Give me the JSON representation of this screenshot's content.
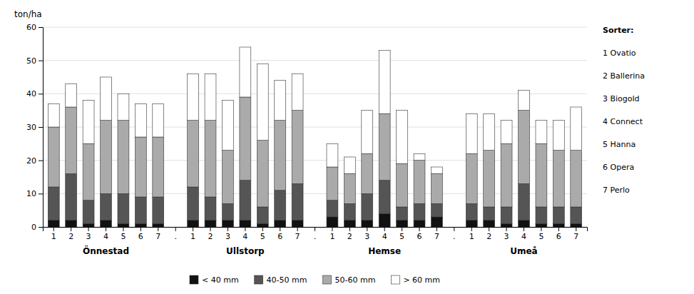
{
  "chart_data": {
    "type": "bar",
    "stacked": true,
    "y_label": "ton/ha",
    "categories": [
      "1",
      "2",
      "3",
      "4",
      "5",
      "6",
      "7",
      ".",
      "1",
      "2",
      "3",
      "4",
      "5",
      "6",
      "7",
      ".",
      "1",
      "2",
      "3",
      "4",
      "5",
      "6",
      "7",
      ".",
      "1",
      "2",
      "3",
      "4",
      "5",
      "6",
      "7"
    ],
    "groups": [
      "Önnestad",
      "Ullstorp",
      "Hemse",
      "Umeå"
    ],
    "series": [
      {
        "name": "< 40 mm",
        "color": "#111111",
        "values": [
          2,
          2,
          1,
          2,
          1,
          1,
          1,
          null,
          2,
          2,
          2,
          2,
          1,
          2,
          2,
          null,
          3,
          2,
          2,
          4,
          2,
          2,
          3,
          null,
          2,
          2,
          1,
          2,
          1,
          1,
          1
        ]
      },
      {
        "name": "40-50 mm",
        "color": "#555555",
        "values": [
          10,
          14,
          7,
          8,
          9,
          8,
          8,
          null,
          10,
          7,
          5,
          12,
          5,
          9,
          11,
          null,
          5,
          5,
          8,
          10,
          4,
          5,
          4,
          null,
          5,
          4,
          5,
          11,
          5,
          5,
          5
        ]
      },
      {
        "name": "50-60 mm",
        "color": "#aaaaaa",
        "values": [
          18,
          20,
          17,
          22,
          22,
          18,
          18,
          null,
          20,
          23,
          16,
          25,
          20,
          21,
          22,
          null,
          10,
          9,
          12,
          20,
          13,
          13,
          9,
          null,
          15,
          17,
          19,
          22,
          19,
          17,
          17
        ]
      },
      {
        "name": "> 60 mm",
        "color": "#ffffff",
        "values": [
          7,
          7,
          13,
          13,
          8,
          10,
          10,
          null,
          14,
          14,
          15,
          15,
          23,
          12,
          11,
          null,
          7,
          5,
          13,
          19,
          16,
          2,
          2,
          null,
          12,
          11,
          7,
          6,
          7,
          9,
          13
        ]
      }
    ],
    "ylim": [
      0,
      60
    ],
    "yticks": [
      0,
      10,
      20,
      30,
      40,
      50,
      60
    ],
    "grid": true,
    "legend": "bottom",
    "annotations": [
      "Sorter:",
      "1 Ovatio",
      "2 Ballerina",
      "3 Biogold",
      "4 Connect",
      "5 Hanna",
      "6 Opera",
      "7 Perlo"
    ]
  }
}
